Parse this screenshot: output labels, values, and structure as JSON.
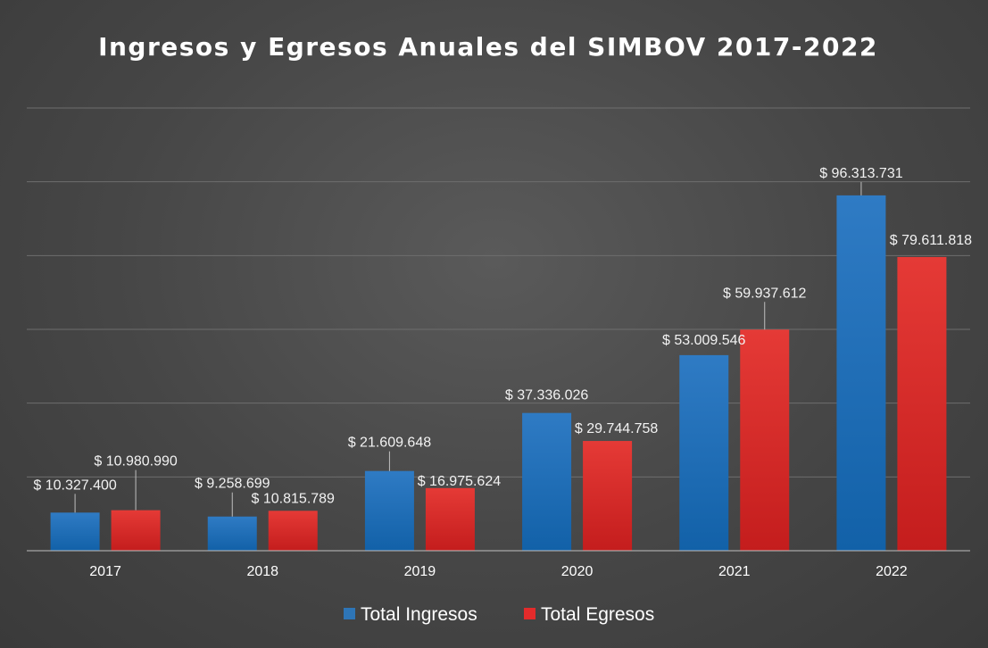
{
  "chart_data": {
    "type": "bar",
    "title": "Ingresos y Egresos Anuales del SIMBOV 2017-2022",
    "categories": [
      "2017",
      "2018",
      "2019",
      "2020",
      "2021",
      "2022"
    ],
    "series": [
      {
        "name": "Total Ingresos",
        "values": [
          10327400,
          9258699,
          21609648,
          37336026,
          53009546,
          96313731
        ],
        "labels": [
          "$ 10.327.400",
          "$ 9.258.699",
          "$ 21.609.648",
          "$ 37.336.026",
          "$ 53.009.546",
          "$ 96.313.731"
        ],
        "color": "#2e75b6"
      },
      {
        "name": "Total Egresos",
        "values": [
          10980990,
          10815789,
          16975624,
          29744758,
          59937612,
          79611818
        ],
        "labels": [
          "$ 10.980.990",
          "$ 10.815.789",
          "$ 16.975.624",
          "$ 29.744.758",
          "$ 59.937.612",
          "$ 79.611.818"
        ],
        "color": "#e32b2b"
      }
    ],
    "ylim": [
      0,
      120000000
    ],
    "grid": true,
    "y_axis_labels_visible": false,
    "legend_position": "bottom"
  }
}
